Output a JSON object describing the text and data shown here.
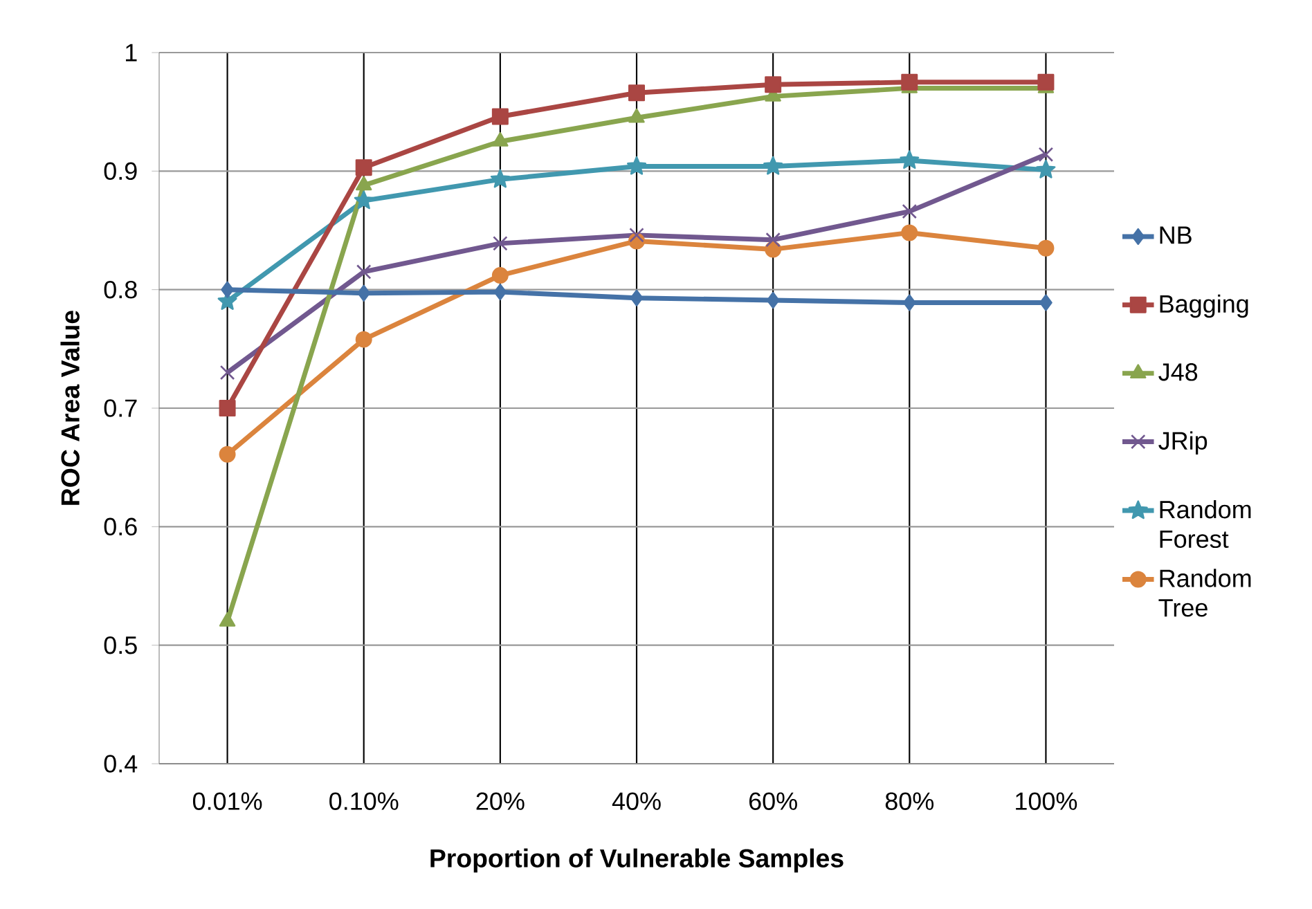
{
  "chart_data": {
    "type": "line",
    "xlabel": "Proportion of Vulnerable Samples",
    "ylabel": "ROC Area Value",
    "categories": [
      "0.01%",
      "0.10%",
      "20%",
      "40%",
      "60%",
      "80%",
      "100%"
    ],
    "series": [
      {
        "name": "NB",
        "color": "#4572a7",
        "marker": "diamond",
        "values": [
          0.8,
          0.797,
          0.798,
          0.793,
          0.791,
          0.789,
          0.789
        ]
      },
      {
        "name": "Bagging",
        "color": "#aa4643",
        "marker": "square",
        "values": [
          0.7,
          0.903,
          0.946,
          0.966,
          0.973,
          0.975,
          0.975
        ]
      },
      {
        "name": "J48",
        "color": "#89a54e",
        "marker": "triangle",
        "values": [
          0.52,
          0.888,
          0.925,
          0.945,
          0.963,
          0.97,
          0.97
        ]
      },
      {
        "name": "JRip",
        "color": "#71588f",
        "marker": "cross",
        "values": [
          0.73,
          0.815,
          0.839,
          0.846,
          0.842,
          0.866,
          0.914
        ]
      },
      {
        "name": "Random Forest",
        "color": "#4198af",
        "marker": "star",
        "values": [
          0.79,
          0.875,
          0.893,
          0.904,
          0.904,
          0.909,
          0.901
        ]
      },
      {
        "name": "Random Tree",
        "color": "#db843d",
        "marker": "circle",
        "values": [
          0.661,
          0.758,
          0.812,
          0.841,
          0.834,
          0.848,
          0.835
        ]
      }
    ],
    "ylim": [
      0.4,
      1
    ],
    "yticks": [
      0.4,
      0.5,
      0.6,
      0.7,
      0.8,
      0.9,
      1
    ],
    "grid": true,
    "legend": "right"
  }
}
